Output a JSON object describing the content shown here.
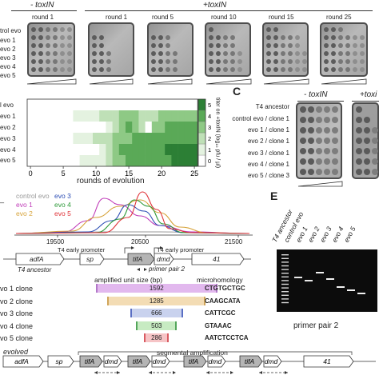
{
  "panelA": {
    "header_minus": "- toxIN",
    "header_plus": "+toxIN",
    "round_labels": [
      "round 1",
      "round 1",
      "round 5",
      "round 10",
      "round 15",
      "round 25"
    ],
    "row_labels": [
      "trol evo",
      "evo 1",
      "evo 2",
      "evo 3",
      "evo 4",
      "evo 5"
    ]
  },
  "heatmap": {
    "row_labels": [
      "l evo",
      "evo 1",
      "evo 2",
      "evo 3",
      "evo 4",
      "evo 5"
    ],
    "x_ticks": [
      "0",
      "5",
      "10",
      "15",
      "20",
      "25"
    ],
    "xlabel": "rounds of evolution",
    "colorbar_ticks": [
      "0",
      "1",
      "2",
      "3",
      "4",
      "5"
    ],
    "colorbar_label": "titer on +toxIN (log₁₀ pfu / µl)",
    "colors": [
      "#ffffff",
      "#e4f2e0",
      "#bfe0b7",
      "#8ec985",
      "#5aa957",
      "#2c7f35"
    ]
  },
  "panelC": {
    "letter": "C",
    "header_minus": "- toxIN",
    "header_plus": "+toxi",
    "rows": [
      "T4 ancestor",
      "control evo / clone 1",
      "evo 1 / clone 1",
      "evo 2 / clone 1",
      "evo 3 / clone 1",
      "evo 4 / clone 1",
      "evo 5 / clone 3"
    ]
  },
  "panelD": {
    "legend": [
      {
        "name": "control evo",
        "color": "#9a9a9a"
      },
      {
        "name": "evo 1",
        "color": "#c03cb8"
      },
      {
        "name": "evo 2",
        "color": "#d7a43c"
      },
      {
        "name": "evo 3",
        "color": "#2e4fb5"
      },
      {
        "name": "evo 4",
        "color": "#2e9a3a"
      },
      {
        "name": "evo 5",
        "color": "#e0343a"
      }
    ],
    "x_ticks": [
      "19500",
      "20500",
      "21500"
    ],
    "promoter_left": "T4 early promoter",
    "promoter_right": "T4 early promoter",
    "genes": {
      "adfA": "adfA",
      "sp": "sp",
      "tifA": "tifA",
      "dmd": "dmd",
      "g41": "41",
      "ancestor": "T4 ancestor"
    },
    "primer_label": "primer pair 2",
    "amplified_header": "amplified unit size (bp)",
    "micro_header": "microhomology",
    "clones": [
      {
        "name": "vo 1 clone",
        "size": "1592",
        "color": "#e2b8ee",
        "border": "#b278c9",
        "micro": "CTGTGCTGC",
        "frac": 1.0
      },
      {
        "name": "vo 2 clone",
        "size": "1285",
        "color": "#f3dcb4",
        "border": "#d0a55a",
        "micro": "CAAGCATA",
        "frac": 0.807
      },
      {
        "name": "vo 3 clone",
        "size": "666",
        "color": "#c9d2ee",
        "border": "#5a6fc4",
        "micro": "CATTCGC",
        "frac": 0.418
      },
      {
        "name": "vo 4 clone",
        "size": "503",
        "color": "#c7ebc2",
        "border": "#54a55b",
        "micro": "GTAAAC",
        "frac": 0.316
      },
      {
        "name": "vo 5 clone",
        "size": "286",
        "color": "#f6c4c6",
        "border": "#d95b62",
        "micro": "AATCTCCTCA",
        "frac": 0.18
      }
    ]
  },
  "panelE": {
    "letter": "E",
    "lanes": [
      "T4 ancestor",
      "control evo",
      "evo 1",
      "evo 2",
      "evo 3",
      "evo 4",
      "evo 5"
    ],
    "caption": "primer pair 2"
  },
  "panelF": {
    "evolved_label": "evolved",
    "segmental_label": "segmental amplification",
    "genes": [
      "adfA",
      "sp",
      "tifA",
      "dmd",
      "tifA",
      "dmd",
      "tifA",
      "dmd",
      "tifA",
      "dmd",
      "41"
    ]
  }
}
